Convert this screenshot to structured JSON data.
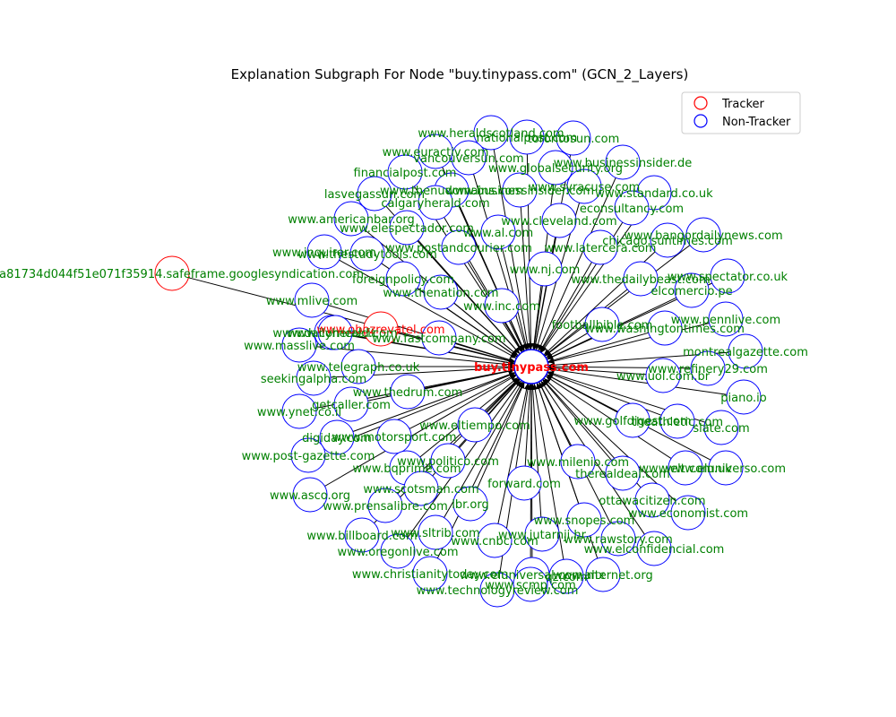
{
  "title": "Explanation Subgraph For Node \"buy.tinypass.com\" (GCN_2_Layers)",
  "colors": {
    "tracker": "#ff0000",
    "non_tracker": "#0000ff",
    "label": "#008000",
    "tracker_label": "#ff0000",
    "center_label": "#ff0000",
    "edge": "#000000"
  },
  "legend": {
    "items": [
      {
        "label": "Tracker",
        "color": "#ff0000"
      },
      {
        "label": "Non-Tracker",
        "color": "#0000ff"
      }
    ]
  },
  "center": {
    "label": "buy.tinypass.com",
    "type": "non-tracker"
  },
  "nodes": [
    {
      "label": "www.heraldscotland.com",
      "type": "non-tracker"
    },
    {
      "label": "nationalpost.com",
      "type": "non-tracker"
    },
    {
      "label": "torontosun.com",
      "type": "non-tracker"
    },
    {
      "label": "www.euractiv.com",
      "type": "non-tracker"
    },
    {
      "label": "vancouversun.com",
      "type": "non-tracker"
    },
    {
      "label": "www.businessinsider.de",
      "type": "non-tracker"
    },
    {
      "label": "www.globalsecurity.org",
      "type": "non-tracker"
    },
    {
      "label": "financialpost.com",
      "type": "non-tracker"
    },
    {
      "label": "www.thenudomains.com",
      "type": "non-tracker"
    },
    {
      "label": "www.businessinsider.com",
      "type": "non-tracker"
    },
    {
      "label": "www.syracuse.com",
      "type": "non-tracker"
    },
    {
      "label": "www.standard.co.uk",
      "type": "non-tracker"
    },
    {
      "label": "lasvegassun.com",
      "type": "non-tracker"
    },
    {
      "label": "calgaryherald.com",
      "type": "non-tracker"
    },
    {
      "label": "econsultancy.com",
      "type": "non-tracker"
    },
    {
      "label": "www.americanbar.org",
      "type": "non-tracker"
    },
    {
      "label": "www.cleveland.com",
      "type": "non-tracker"
    },
    {
      "label": "www.elespectador.com",
      "type": "non-tracker"
    },
    {
      "label": "www.al.com",
      "type": "non-tracker"
    },
    {
      "label": "www.bangordailynews.com",
      "type": "non-tracker"
    },
    {
      "label": "chicago.suntimes.com",
      "type": "non-tracker"
    },
    {
      "label": "www.inquirer.com",
      "type": "non-tracker"
    },
    {
      "label": "www.thestudytools.com",
      "type": "non-tracker"
    },
    {
      "label": "www.postandcourier.com",
      "type": "non-tracker"
    },
    {
      "label": "www.latercera.com",
      "type": "non-tracker"
    },
    {
      "label": "61fa81734d044f51e071f35914.safeframe.googlesyndication.com",
      "type": "tracker"
    },
    {
      "label": "www.nj.com",
      "type": "non-tracker"
    },
    {
      "label": "foreignpolicy.com",
      "type": "non-tracker"
    },
    {
      "label": "www.spectator.co.uk",
      "type": "non-tracker"
    },
    {
      "label": "www.thedailybeast.com",
      "type": "non-tracker"
    },
    {
      "label": "www.mlive.com",
      "type": "non-tracker"
    },
    {
      "label": "www.thenation.com",
      "type": "non-tracker"
    },
    {
      "label": "elcomercio.pe",
      "type": "non-tracker"
    },
    {
      "label": "www.corriere.it",
      "type": "non-tracker"
    },
    {
      "label": "www.inc.com",
      "type": "non-tracker"
    },
    {
      "label": "www.pennlive.com",
      "type": "non-tracker"
    },
    {
      "label": "www.obozrevatel.com",
      "type": "tracker"
    },
    {
      "label": "www.dailyherald.com",
      "type": "non-tracker"
    },
    {
      "label": "www.fastcompany.com",
      "type": "non-tracker"
    },
    {
      "label": "footballbible.com",
      "type": "non-tracker"
    },
    {
      "label": "www.washingtontimes.com",
      "type": "non-tracker"
    },
    {
      "label": "www.masslive.com",
      "type": "non-tracker"
    },
    {
      "label": "montrealgazette.com",
      "type": "non-tracker"
    },
    {
      "label": "www.telegraph.co.uk",
      "type": "non-tracker"
    },
    {
      "label": "www.refinery29.com",
      "type": "non-tracker"
    },
    {
      "label": "seekingalpha.com",
      "type": "non-tracker"
    },
    {
      "label": "www.uol.com.br",
      "type": "non-tracker"
    },
    {
      "label": "www.thedrum.com",
      "type": "non-tracker"
    },
    {
      "label": "piano.io",
      "type": "non-tracker"
    },
    {
      "label": "getcaller.com",
      "type": "non-tracker"
    },
    {
      "label": "www.ynet.co.il",
      "type": "non-tracker"
    },
    {
      "label": "www.golfdigest.com",
      "type": "non-tracker"
    },
    {
      "label": "theathletic.com",
      "type": "non-tracker"
    },
    {
      "label": "slate.com",
      "type": "non-tracker"
    },
    {
      "label": "www.eltiempo.com",
      "type": "non-tracker"
    },
    {
      "label": "digiday.com",
      "type": "non-tracker"
    },
    {
      "label": "www.motorsport.com",
      "type": "non-tracker"
    },
    {
      "label": "www.post-gazette.com",
      "type": "non-tracker"
    },
    {
      "label": "www.politico.com",
      "type": "non-tracker"
    },
    {
      "label": "www.milenio.com",
      "type": "non-tracker"
    },
    {
      "label": "www.bqprime.com",
      "type": "non-tracker"
    },
    {
      "label": "therealdeal.com",
      "type": "non-tracker"
    },
    {
      "label": "www.elt.com.uk",
      "type": "non-tracker"
    },
    {
      "label": "www.eluniverso.com",
      "type": "non-tracker"
    },
    {
      "label": "www.scotsman.com",
      "type": "non-tracker"
    },
    {
      "label": "forward.com",
      "type": "non-tracker"
    },
    {
      "label": "www.asco.org",
      "type": "non-tracker"
    },
    {
      "label": "www.prensalibre.com",
      "type": "non-tracker"
    },
    {
      "label": "lbr.org",
      "type": "non-tracker"
    },
    {
      "label": "ottawacitizen.com",
      "type": "non-tracker"
    },
    {
      "label": "www.economist.com",
      "type": "non-tracker"
    },
    {
      "label": "www.snopes.com",
      "type": "non-tracker"
    },
    {
      "label": "www.billboard.com",
      "type": "non-tracker"
    },
    {
      "label": "www.sltrib.com",
      "type": "non-tracker"
    },
    {
      "label": "www.jutarnji.hr",
      "type": "non-tracker"
    },
    {
      "label": "www.rawstory.com",
      "type": "non-tracker"
    },
    {
      "label": "www.cnbc.com",
      "type": "non-tracker"
    },
    {
      "label": "www.oregonlive.com",
      "type": "non-tracker"
    },
    {
      "label": "www.elconfidencial.com",
      "type": "non-tracker"
    },
    {
      "label": "www.christianitytoday.com",
      "type": "non-tracker"
    },
    {
      "label": "www.eluniversal.com.mx",
      "type": "non-tracker"
    },
    {
      "label": "www.alternet.org",
      "type": "non-tracker"
    },
    {
      "label": "qz.com",
      "type": "non-tracker"
    },
    {
      "label": "www.scmp.com",
      "type": "non-tracker"
    },
    {
      "label": "www.technologyreview.com",
      "type": "non-tracker"
    }
  ]
}
